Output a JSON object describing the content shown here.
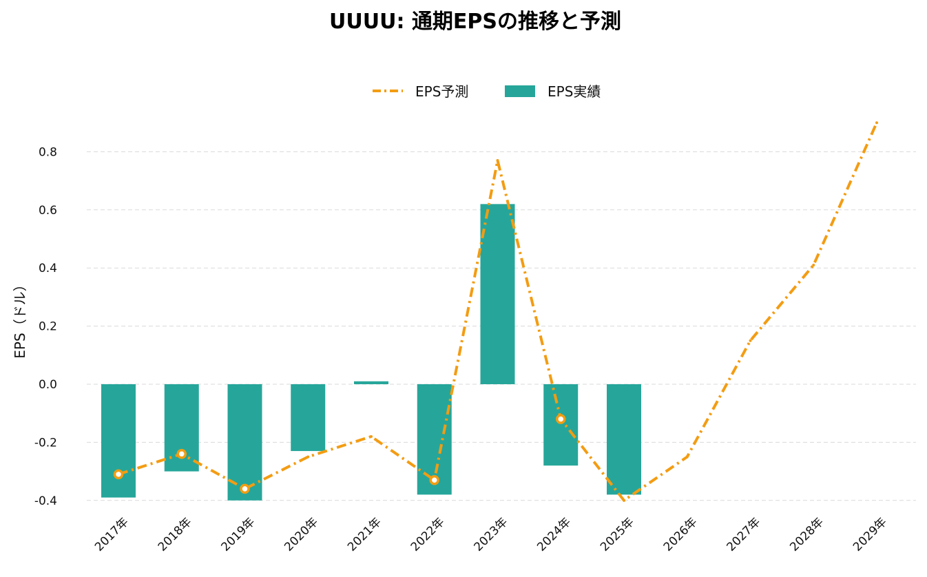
{
  "chart_data": {
    "type": "bar",
    "title": "UUUU: 通期EPSの推移と予測",
    "ylabel": "EPS（ドル）",
    "xlabel": "",
    "categories": [
      "2017年",
      "2018年",
      "2019年",
      "2020年",
      "2021年",
      "2022年",
      "2023年",
      "2024年",
      "2025年",
      "2026年",
      "2027年",
      "2028年",
      "2029年"
    ],
    "ylim": [
      -0.43,
      0.93
    ],
    "yticks": [
      -0.4,
      -0.2,
      0.0,
      0.2,
      0.4,
      0.6,
      0.8
    ],
    "ytick_labels": [
      "-0.4",
      "-0.2",
      "0.0",
      "0.2",
      "0.4",
      "0.6",
      "0.8"
    ],
    "grid": true,
    "legend_position": "top-center",
    "series": [
      {
        "name": "EPS予測",
        "kind": "line",
        "style": "dash-dot",
        "color": "#F39C12",
        "values": [
          -0.31,
          -0.24,
          -0.36,
          -0.25,
          -0.18,
          -0.33,
          0.77,
          -0.12,
          -0.4,
          -0.25,
          0.15,
          0.41,
          0.9
        ],
        "markers": [
          true,
          true,
          true,
          false,
          false,
          true,
          false,
          true,
          false,
          false,
          false,
          false,
          false
        ]
      },
      {
        "name": "EPS実績",
        "kind": "bar",
        "color": "#26A69A",
        "values": [
          -0.39,
          -0.3,
          -0.4,
          -0.23,
          0.01,
          -0.38,
          0.62,
          -0.28,
          -0.38,
          null,
          null,
          null,
          null
        ]
      }
    ]
  }
}
